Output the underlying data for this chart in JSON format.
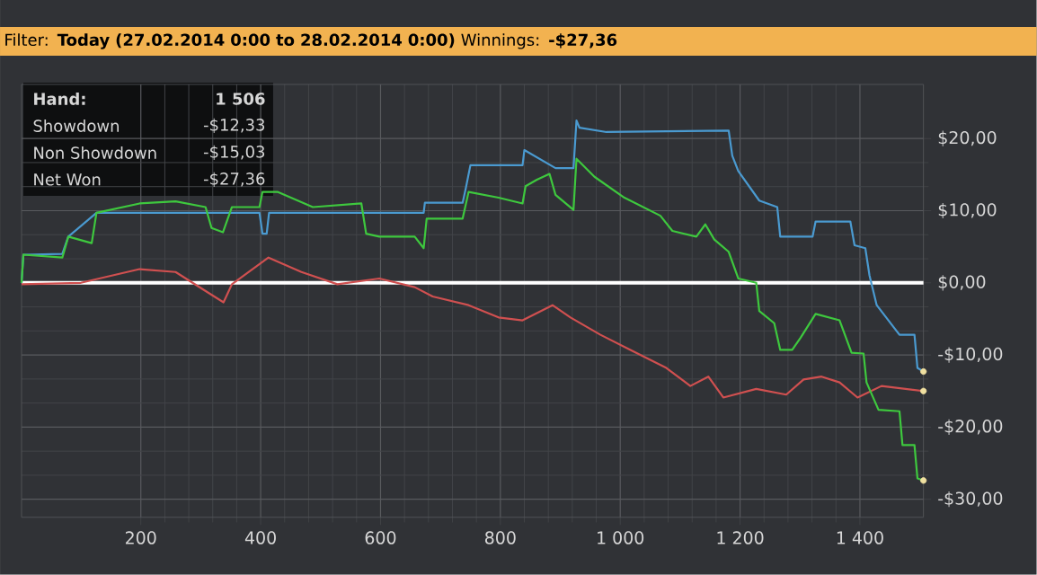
{
  "chart_data": {
    "type": "line",
    "title": "Filter: **Today (27.02.2014 0:00 to 28.02.2014 0:00)** Winnings: **-$27,36**",
    "annotations": [
      "**Hand:**",
      "**1 506**",
      "Showdown",
      "-$12,33",
      "Non Showdown",
      "-$15,03",
      "Net Won",
      "-$27,36"
    ],
    "xlim": [
      1,
      1506
    ],
    "ylim": [
      -32.5,
      27.5
    ],
    "xticks": [
      200,
      400,
      600,
      800,
      {
        "value": 1000,
        "label": "1 000"
      },
      {
        "value": 1200,
        "label": "1 200"
      },
      {
        "value": 1400,
        "label": "1 400"
      }
    ],
    "yticks": [
      {
        "value": -30,
        "label": "-$30,00"
      },
      {
        "value": -20,
        "label": "-$20,00"
      },
      {
        "value": -10,
        "label": "-$10,00"
      },
      {
        "value": 0,
        "label": "$0,00"
      },
      {
        "value": 10,
        "label": "$10,00"
      },
      {
        "value": 20,
        "label": "$20,00"
      }
    ],
    "grid": true,
    "ref_lines": [
      {
        "axis": "y",
        "value": 0,
        "color": "#ffffff"
      }
    ],
    "series": [
      {
        "color": "#4a9ad0",
        "x": [
          1,
          4,
          69,
          79,
          126,
          398,
          403,
          410,
          414,
          672,
          674,
          737,
          742,
          750,
          837,
          840,
          892,
          922,
          927,
          932,
          977,
          1181,
          1187,
          1197,
          1232,
          1262,
          1267,
          1321,
          1326,
          1384,
          1391,
          1409,
          1416,
          1428,
          1466,
          1491,
          1496,
          1506
        ],
        "values": [
          0,
          3.9,
          4.0,
          6.4,
          9.7,
          9.7,
          6.8,
          6.8,
          9.7,
          9.7,
          11.1,
          11.1,
          13.0,
          16.3,
          16.3,
          18.4,
          15.9,
          15.9,
          22.5,
          21.5,
          20.9,
          21.1,
          17.6,
          15.5,
          11.4,
          10.5,
          6.4,
          6.4,
          8.5,
          8.5,
          5.2,
          4.8,
          1.0,
          -3.1,
          -7.2,
          -7.2,
          -11.8,
          -12.3
        ]
      },
      {
        "color": "#d05050",
        "x": [
          1,
          100,
          198,
          258,
          313,
          338,
          352,
          413,
          468,
          528,
          598,
          657,
          687,
          747,
          797,
          837,
          887,
          917,
          967,
          1017,
          1077,
          1117,
          1147,
          1172,
          1227,
          1277,
          1306,
          1336,
          1366,
          1396,
          1436,
          1506
        ],
        "values": [
          -0.2,
          0.0,
          1.9,
          1.5,
          -1.4,
          -2.7,
          -0.2,
          3.5,
          1.5,
          -0.2,
          0.6,
          -0.6,
          -1.9,
          -3.1,
          -4.8,
          -5.2,
          -3.1,
          -4.8,
          -7.2,
          -9.3,
          -11.8,
          -14.3,
          -13.0,
          -15.9,
          -14.7,
          -15.5,
          -13.4,
          -13.0,
          -13.8,
          -15.9,
          -14.3,
          -15.0
        ]
      },
      {
        "color": "#3ec83e",
        "x": [
          1,
          4,
          69,
          79,
          118,
          126,
          198,
          258,
          308,
          318,
          337,
          352,
          398,
          403,
          428,
          487,
          568,
          576,
          598,
          657,
          672,
          677,
          737,
          747,
          797,
          837,
          842,
          861,
          882,
          892,
          922,
          927,
          957,
          1007,
          1067,
          1087,
          1127,
          1142,
          1157,
          1181,
          1197,
          1227,
          1232,
          1257,
          1267,
          1287,
          1301,
          1326,
          1366,
          1386,
          1406,
          1411,
          1431,
          1466,
          1471,
          1491,
          1496,
          1506
        ],
        "values": [
          0,
          3.9,
          3.5,
          6.4,
          5.5,
          9.7,
          11.0,
          11.3,
          10.5,
          7.6,
          7.0,
          10.5,
          10.5,
          12.6,
          12.6,
          10.5,
          11.0,
          6.8,
          6.4,
          6.4,
          4.8,
          8.9,
          8.9,
          12.6,
          11.8,
          11.0,
          13.4,
          14.3,
          15.1,
          12.2,
          10.1,
          17.2,
          14.7,
          11.8,
          9.3,
          7.2,
          6.4,
          8.1,
          6.0,
          4.3,
          0.6,
          0.0,
          -3.9,
          -5.6,
          -9.3,
          -9.3,
          -7.6,
          -4.3,
          -5.2,
          -9.7,
          -9.8,
          -13.8,
          -17.6,
          -17.8,
          -22.5,
          -22.5,
          -27.1,
          -27.4
        ]
      },
      {
        "type": "scatter",
        "color": "#f0e0a0",
        "x": [
          1506,
          1506,
          1506
        ],
        "values": [
          -12.3,
          -15.0,
          -27.4
        ]
      }
    ]
  }
}
